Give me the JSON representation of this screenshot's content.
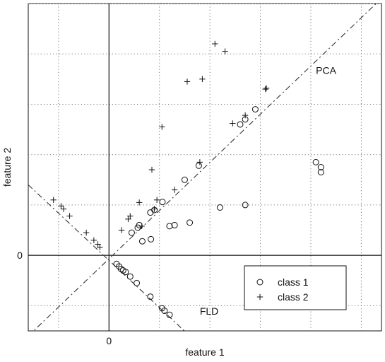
{
  "chart_data": {
    "type": "scatter",
    "xlabel": "feature 1",
    "ylabel": "feature 2",
    "xlim": [
      -1.6,
      5.4
    ],
    "ylim": [
      -1.5,
      5.0
    ],
    "x_tick_labels": [
      "0"
    ],
    "y_tick_labels": [
      "0"
    ],
    "grid": true,
    "legend_position": "lower-right",
    "series": [
      {
        "name": "class 1",
        "marker": "circle",
        "points": [
          [
            0.15,
            -0.17
          ],
          [
            0.2,
            -0.22
          ],
          [
            0.24,
            -0.27
          ],
          [
            0.28,
            -0.3
          ],
          [
            0.33,
            -0.33
          ],
          [
            0.42,
            -0.42
          ],
          [
            0.55,
            -0.55
          ],
          [
            0.82,
            -0.82
          ],
          [
            1.05,
            -1.05
          ],
          [
            1.1,
            -1.1
          ],
          [
            1.2,
            -1.18
          ],
          [
            0.45,
            0.45
          ],
          [
            0.57,
            0.55
          ],
          [
            0.6,
            0.6
          ],
          [
            0.82,
            0.85
          ],
          [
            0.9,
            0.9
          ],
          [
            1.06,
            1.06
          ],
          [
            1.5,
            1.5
          ],
          [
            1.78,
            1.78
          ],
          [
            2.6,
            2.6
          ],
          [
            2.7,
            2.7
          ],
          [
            2.9,
            2.9
          ],
          [
            0.66,
            0.28
          ],
          [
            0.83,
            0.32
          ],
          [
            1.2,
            0.58
          ],
          [
            1.3,
            0.6
          ],
          [
            1.6,
            0.65
          ],
          [
            2.2,
            0.95
          ],
          [
            2.7,
            1.0
          ],
          [
            4.2,
            1.75
          ],
          [
            4.1,
            1.85
          ],
          [
            4.2,
            1.65
          ]
        ]
      },
      {
        "name": "class 2",
        "marker": "plus",
        "points": [
          [
            -1.1,
            1.1
          ],
          [
            -0.95,
            0.98
          ],
          [
            -0.9,
            0.92
          ],
          [
            -0.78,
            0.78
          ],
          [
            -0.45,
            0.45
          ],
          [
            -0.3,
            0.3
          ],
          [
            -0.22,
            0.22
          ],
          [
            -0.18,
            0.16
          ],
          [
            0.25,
            0.5
          ],
          [
            0.38,
            0.72
          ],
          [
            0.42,
            0.78
          ],
          [
            0.65,
            0.58
          ],
          [
            0.9,
            0.92
          ],
          [
            0.95,
            1.1
          ],
          [
            0.85,
            1.7
          ],
          [
            1.3,
            1.3
          ],
          [
            1.8,
            1.85
          ],
          [
            2.45,
            2.62
          ],
          [
            2.7,
            2.78
          ],
          [
            3.1,
            3.3
          ],
          [
            3.12,
            3.32
          ],
          [
            1.05,
            2.55
          ],
          [
            2.1,
            4.2
          ],
          [
            2.3,
            4.05
          ],
          [
            1.55,
            3.45
          ],
          [
            1.85,
            3.5
          ],
          [
            0.6,
            1.05
          ]
        ]
      }
    ],
    "reference_lines": [
      {
        "label": "PCA",
        "style": "dash-dot",
        "x": [
          -1.6,
          5.4
        ],
        "y": [
          -1.6,
          5.1
        ]
      },
      {
        "label": "FLD",
        "style": "dash-dot",
        "x": [
          -1.6,
          1.6
        ],
        "y": [
          1.4,
          -1.6
        ]
      }
    ],
    "annotations": [
      {
        "text": "PCA",
        "x": 4.1,
        "y": 3.6
      },
      {
        "text": "FLD",
        "x": 1.8,
        "y": -1.18
      }
    ],
    "legend": [
      {
        "label": "class 1",
        "marker": "circle"
      },
      {
        "label": "class 2",
        "marker": "plus"
      }
    ],
    "colors": {
      "axes": "#111111",
      "grid": "#777777",
      "markers": "#111111",
      "reference_lines": "#333333"
    }
  }
}
